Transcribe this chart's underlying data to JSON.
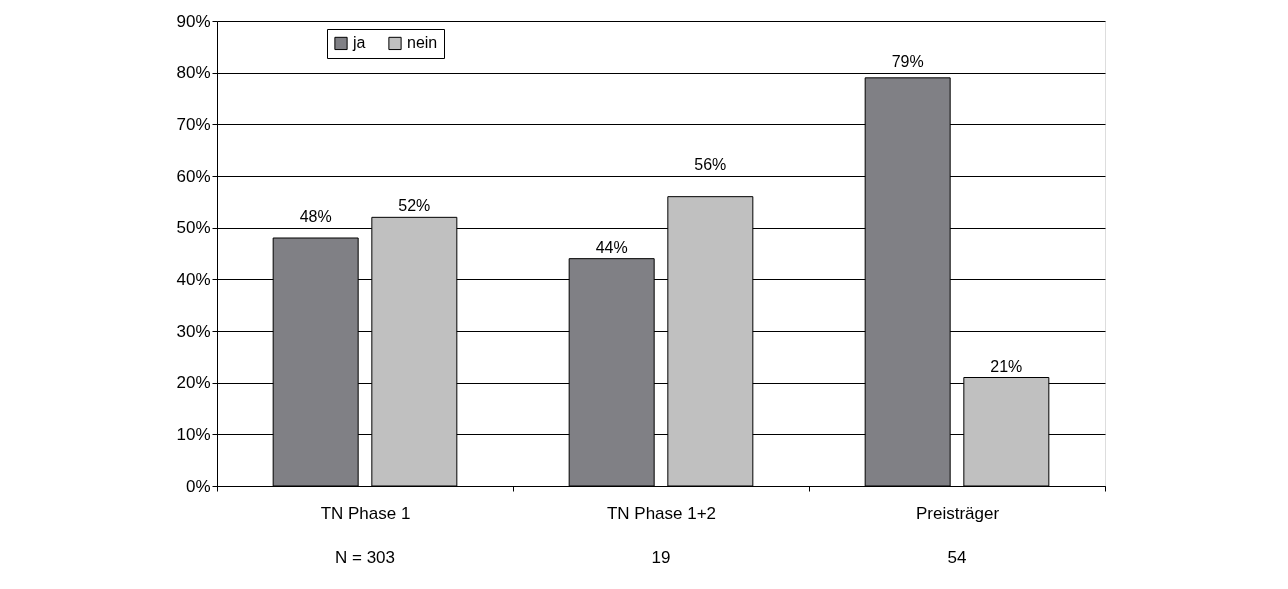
{
  "chart_data": {
    "type": "bar",
    "categories": [
      "TN Phase 1",
      "TN Phase 1+2",
      "Preisträger"
    ],
    "series": [
      {
        "name": "ja",
        "color": "#808085",
        "values": [
          48,
          44,
          79
        ],
        "value_labels": [
          "48%",
          "44%",
          "79%"
        ]
      },
      {
        "name": "nein",
        "color": "#c0c0c0",
        "values": [
          52,
          56,
          21
        ],
        "value_labels": [
          "52%",
          "56%",
          "21%"
        ]
      }
    ],
    "ylim": [
      0,
      90
    ],
    "yticks": [
      {
        "value": 0,
        "label": "0%"
      },
      {
        "value": 10,
        "label": "10%"
      },
      {
        "value": 20,
        "label": "20%"
      },
      {
        "value": 30,
        "label": "30%"
      },
      {
        "value": 40,
        "label": "40%"
      },
      {
        "value": 50,
        "label": "50%"
      },
      {
        "value": 60,
        "label": "60%"
      },
      {
        "value": 70,
        "label": "70%"
      },
      {
        "value": 80,
        "label": "80%"
      },
      {
        "value": 90,
        "label": "90%"
      }
    ],
    "grid": "y",
    "legend": "top left",
    "annotations": [
      "N = 303",
      "19",
      "54"
    ]
  }
}
